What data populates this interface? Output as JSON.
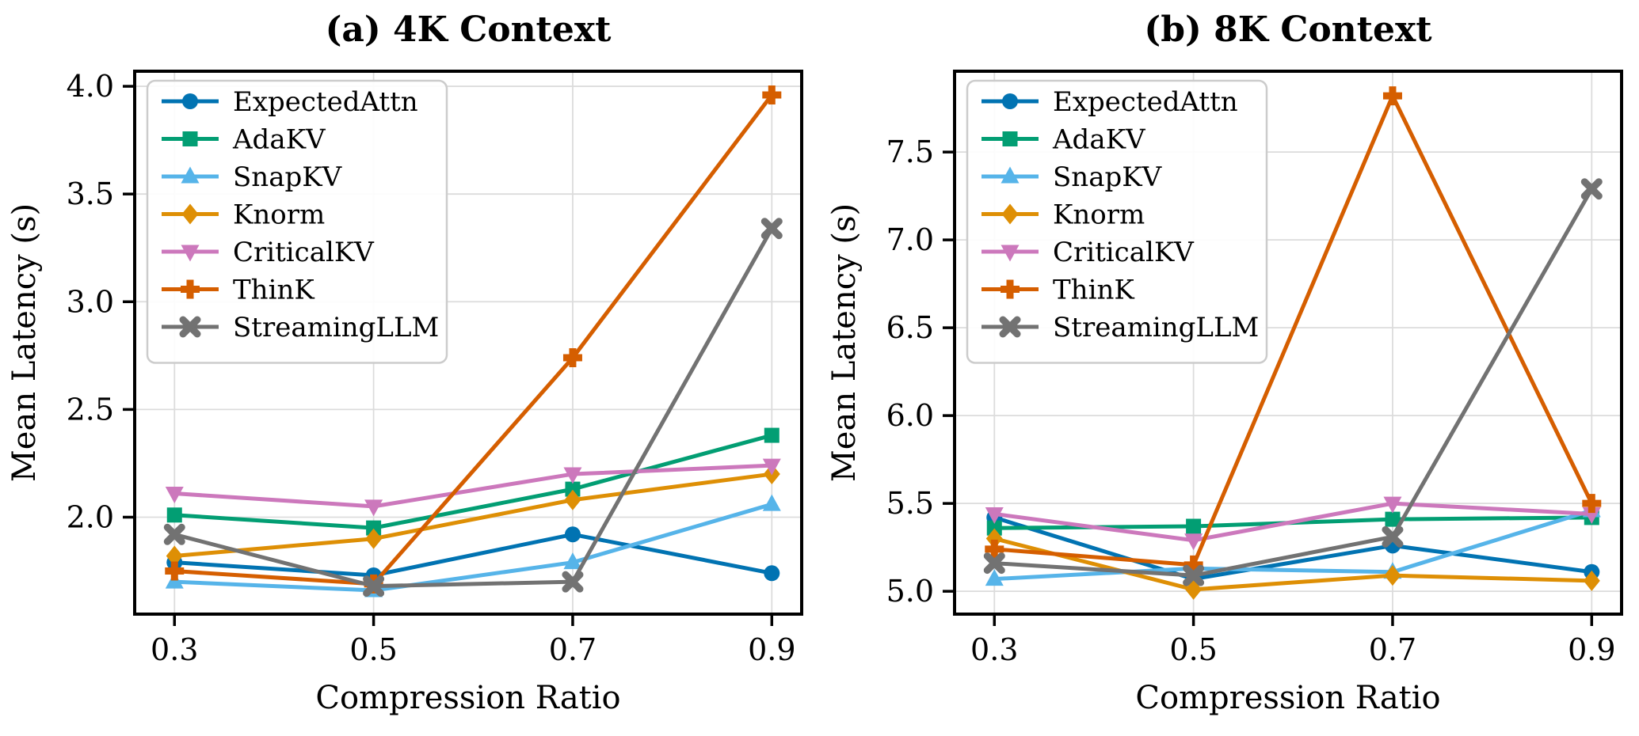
{
  "figure": {
    "x_axis_label": "Compression Ratio",
    "y_axis_label": "Mean Latency (s)",
    "legend_entries": [
      "ExpectedAttn",
      "AdaKV",
      "SnapKV",
      "Knorm",
      "CriticalKV",
      "ThinK",
      "StreamingLLM"
    ]
  },
  "chart_data": [
    {
      "type": "line",
      "title": "(a) 4K Context",
      "xlabel": "Compression Ratio",
      "ylabel": "Mean Latency (s)",
      "x": [
        0.3,
        0.5,
        0.7,
        0.9
      ],
      "x_tick_labels": [
        "0.3",
        "0.5",
        "0.7",
        "0.9"
      ],
      "y_ticks": [
        2.0,
        2.5,
        3.0,
        3.5,
        4.0
      ],
      "y_tick_labels": [
        "2.0",
        "2.5",
        "3.0",
        "3.5",
        "4.0"
      ],
      "xlim": [
        0.26,
        0.93
      ],
      "ylim": [
        1.55,
        4.07
      ],
      "grid": true,
      "legend_position": "upper left",
      "series": [
        {
          "name": "ExpectedAttn",
          "color": "#0173b2",
          "marker": "circle",
          "values": [
            1.79,
            1.73,
            1.92,
            1.74
          ]
        },
        {
          "name": "AdaKV",
          "color": "#029e73",
          "marker": "square",
          "values": [
            2.01,
            1.95,
            2.13,
            2.38
          ]
        },
        {
          "name": "SnapKV",
          "color": "#56b4e9",
          "marker": "triangle-up",
          "values": [
            1.7,
            1.66,
            1.79,
            2.06
          ]
        },
        {
          "name": "Knorm",
          "color": "#de8f05",
          "marker": "diamond",
          "values": [
            1.82,
            1.9,
            2.08,
            2.2
          ]
        },
        {
          "name": "CriticalKV",
          "color": "#cc78bc",
          "marker": "triangle-down",
          "values": [
            2.11,
            2.05,
            2.2,
            2.24
          ]
        },
        {
          "name": "ThinK",
          "color": "#d55e00",
          "marker": "plus",
          "values": [
            1.75,
            1.69,
            2.74,
            3.96
          ]
        },
        {
          "name": "StreamingLLM",
          "color": "#727272",
          "marker": "x",
          "values": [
            1.92,
            1.68,
            1.7,
            3.34
          ]
        }
      ]
    },
    {
      "type": "line",
      "title": "(b) 8K Context",
      "xlabel": "Compression Ratio",
      "ylabel": "Mean Latency (s)",
      "x": [
        0.3,
        0.5,
        0.7,
        0.9
      ],
      "x_tick_labels": [
        "0.3",
        "0.5",
        "0.7",
        "0.9"
      ],
      "y_ticks": [
        5.0,
        5.5,
        6.0,
        6.5,
        7.0,
        7.5
      ],
      "y_tick_labels": [
        "5.0",
        "5.5",
        "6.0",
        "6.5",
        "7.0",
        "7.5"
      ],
      "xlim": [
        0.26,
        0.93
      ],
      "ylim": [
        4.87,
        7.96
      ],
      "grid": true,
      "legend_position": "upper left",
      "series": [
        {
          "name": "ExpectedAttn",
          "color": "#0173b2",
          "marker": "circle",
          "values": [
            5.42,
            5.07,
            5.26,
            5.11
          ]
        },
        {
          "name": "AdaKV",
          "color": "#029e73",
          "marker": "square",
          "values": [
            5.36,
            5.37,
            5.41,
            5.42
          ]
        },
        {
          "name": "SnapKV",
          "color": "#56b4e9",
          "marker": "triangle-up",
          "values": [
            5.07,
            5.13,
            5.11,
            5.46
          ]
        },
        {
          "name": "Knorm",
          "color": "#de8f05",
          "marker": "diamond",
          "values": [
            5.3,
            5.01,
            5.09,
            5.06
          ]
        },
        {
          "name": "CriticalKV",
          "color": "#cc78bc",
          "marker": "triangle-down",
          "values": [
            5.44,
            5.29,
            5.5,
            5.44
          ]
        },
        {
          "name": "ThinK",
          "color": "#d55e00",
          "marker": "plus",
          "values": [
            5.24,
            5.15,
            7.82,
            5.5
          ]
        },
        {
          "name": "StreamingLLM",
          "color": "#727272",
          "marker": "x",
          "values": [
            5.16,
            5.09,
            5.31,
            7.29
          ]
        }
      ]
    }
  ]
}
